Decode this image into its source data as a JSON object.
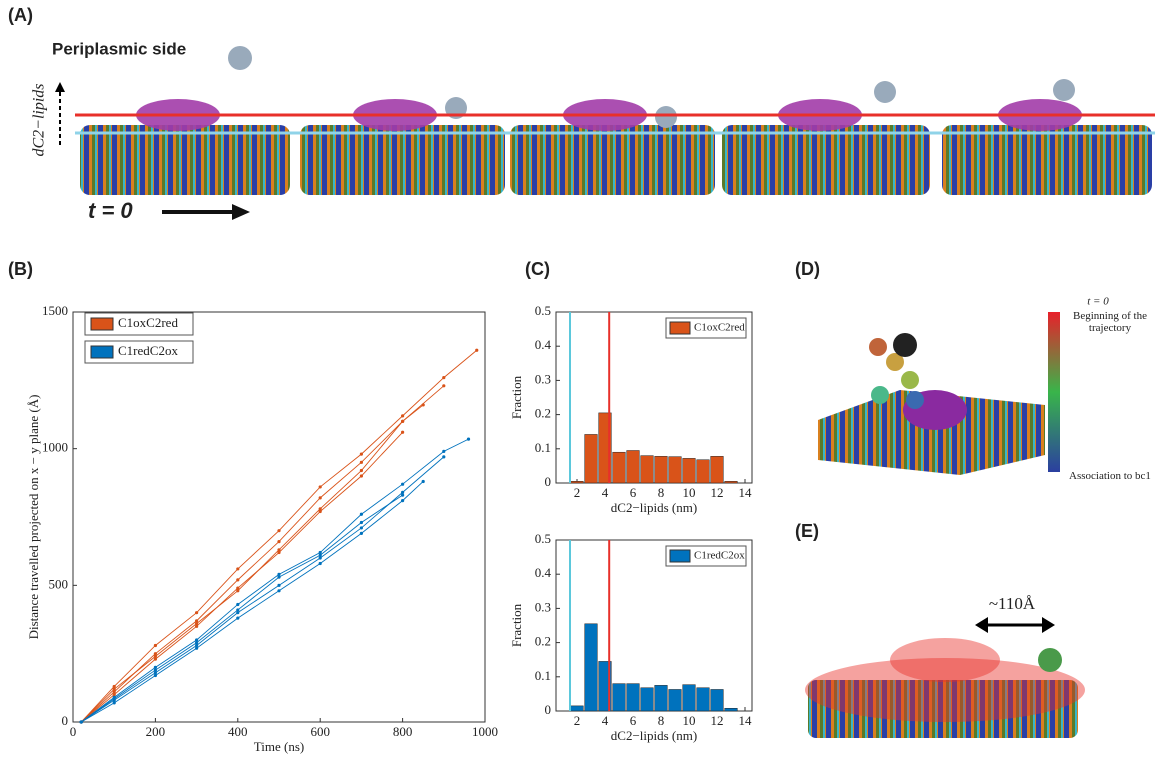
{
  "labels": {
    "a": "(A)",
    "b": "(B)",
    "c": "(C)",
    "d": "(D)",
    "e": "(E)",
    "periplasmic": "Periplasmic side",
    "dlabel": "dC2−lipids",
    "t0": "t = 0"
  },
  "panel_d": {
    "top": "t = 0",
    "begin": "Beginning of the trajectory",
    "end": "Association to bc1"
  },
  "panel_e": {
    "distance": "~110Å"
  },
  "chart_data": [
    {
      "type": "line",
      "xlabel": "Time (ns)",
      "ylabel": "Distance travelled projected on x − y plane (Å)",
      "xlim": [
        0,
        1000
      ],
      "xticks": [
        0,
        200,
        400,
        600,
        800,
        1000
      ],
      "ylim": [
        0,
        1500
      ],
      "yticks": [
        0,
        500,
        1000,
        1500
      ],
      "series": [
        {
          "name": "C1oxC2red",
          "color": "#d95319",
          "lines": [
            {
              "x": [
                20,
                100,
                200,
                300,
                400,
                500,
                600,
                700,
                800,
                900,
                980
              ],
              "values": [
                0,
                130,
                280,
                400,
                560,
                700,
                860,
                980,
                1120,
                1260,
                1360
              ]
            },
            {
              "x": [
                20,
                100,
                200,
                300,
                400,
                500,
                600,
                700,
                800,
                900
              ],
              "values": [
                0,
                110,
                250,
                370,
                520,
                660,
                820,
                950,
                1100,
                1230
              ]
            },
            {
              "x": [
                20,
                100,
                200,
                300,
                400,
                500,
                600,
                700,
                800
              ],
              "values": [
                0,
                100,
                230,
                350,
                490,
                620,
                770,
                900,
                1060
              ]
            },
            {
              "x": [
                20,
                100,
                200,
                300,
                400,
                500,
                600,
                700,
                800,
                850
              ],
              "values": [
                0,
                120,
                240,
                360,
                480,
                630,
                780,
                920,
                1100,
                1160
              ]
            }
          ]
        },
        {
          "name": "C1redC2ox",
          "color": "#0072bd",
          "lines": [
            {
              "x": [
                20,
                100,
                200,
                300,
                400,
                500,
                600,
                700,
                800,
                900,
                960
              ],
              "values": [
                0,
                90,
                200,
                300,
                430,
                540,
                620,
                760,
                870,
                990,
                1035
              ]
            },
            {
              "x": [
                20,
                100,
                200,
                300,
                400,
                500,
                600,
                700,
                800,
                900
              ],
              "values": [
                0,
                80,
                180,
                280,
                400,
                500,
                600,
                710,
                840,
                970
              ]
            },
            {
              "x": [
                20,
                100,
                200,
                300,
                400,
                500,
                600,
                700,
                800,
                850
              ],
              "values": [
                0,
                70,
                170,
                270,
                380,
                480,
                580,
                690,
                810,
                880
              ]
            },
            {
              "x": [
                20,
                100,
                200,
                300,
                400,
                500,
                600,
                700,
                800
              ],
              "values": [
                0,
                85,
                190,
                290,
                410,
                530,
                610,
                730,
                830
              ]
            }
          ]
        }
      ]
    },
    {
      "type": "bar",
      "xlabel": "dC2−lipids (nm)",
      "ylabel": "Fraction",
      "xlim": [
        0.5,
        14.5
      ],
      "xticks": [
        2,
        4,
        6,
        8,
        10,
        12,
        14
      ],
      "ylim": [
        0,
        0.5
      ],
      "yticks": [
        0,
        0.1,
        0.2,
        0.3,
        0.4,
        0.5
      ],
      "name": "C1oxC2red",
      "color": "#d95319",
      "x": [
        2,
        3,
        4,
        5,
        6,
        7,
        8,
        9,
        10,
        11,
        12,
        13
      ],
      "values": [
        0.005,
        0.142,
        0.205,
        0.09,
        0.095,
        0.08,
        0.078,
        0.077,
        0.072,
        0.068,
        0.078,
        0.005
      ],
      "vlines": [
        {
          "value": 1.5,
          "color": "#5bc8dc"
        },
        {
          "value": 4.3,
          "color": "#e8302a"
        }
      ]
    },
    {
      "type": "bar",
      "xlabel": "dC2−lipids (nm)",
      "ylabel": "Fraction",
      "xlim": [
        0.5,
        14.5
      ],
      "xticks": [
        2,
        4,
        6,
        8,
        10,
        12,
        14
      ],
      "ylim": [
        0,
        0.5
      ],
      "yticks": [
        0,
        0.1,
        0.2,
        0.3,
        0.4,
        0.5
      ],
      "name": "C1redC2ox",
      "color": "#0072bd",
      "x": [
        2,
        3,
        4,
        5,
        6,
        7,
        8,
        9,
        10,
        11,
        12,
        13
      ],
      "values": [
        0.015,
        0.255,
        0.145,
        0.08,
        0.08,
        0.068,
        0.075,
        0.063,
        0.077,
        0.068,
        0.063,
        0.008
      ],
      "vlines": [
        {
          "value": 1.5,
          "color": "#5bc8dc"
        },
        {
          "value": 4.3,
          "color": "#e8302a"
        }
      ]
    }
  ]
}
